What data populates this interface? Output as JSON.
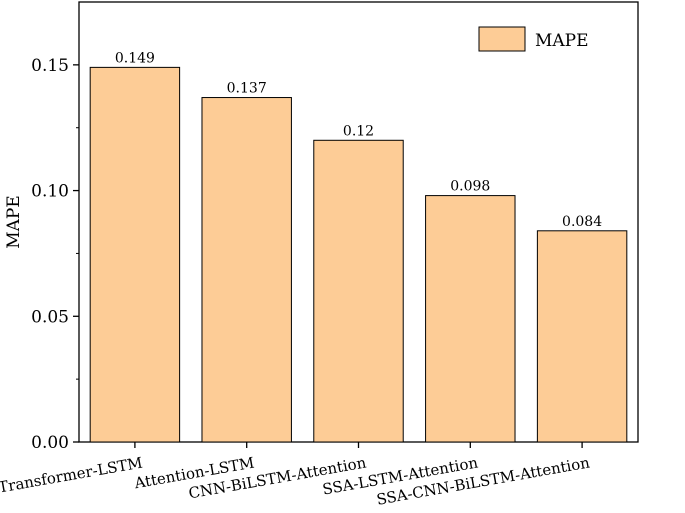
{
  "chart_data": {
    "type": "bar",
    "categories": [
      "Transformer-LSTM",
      "Attention-LSTM",
      "CNN-BiLSTM-Attention",
      "SSA-LSTM-Attention",
      "SSA-CNN-BiLSTM-Attention"
    ],
    "series": [
      {
        "name": "MAPE",
        "values": [
          0.149,
          0.137,
          0.12,
          0.098,
          0.084
        ],
        "data_labels": [
          "0.149",
          "0.137",
          "0.12",
          "0.098",
          "0.084"
        ]
      }
    ],
    "ylabel": "MAPE",
    "xlabel": "",
    "ylim": [
      0,
      0.175
    ],
    "yticks": [
      0.0,
      0.05,
      0.1,
      0.15
    ],
    "ytick_labels": [
      "0.00",
      "0.05",
      "0.10",
      "0.15"
    ],
    "grid": false,
    "legend": {
      "position": "top-right",
      "entries": [
        "MAPE"
      ]
    },
    "colors": {
      "bar_fill": "#FDCC96",
      "bar_stroke": "#000000"
    }
  }
}
